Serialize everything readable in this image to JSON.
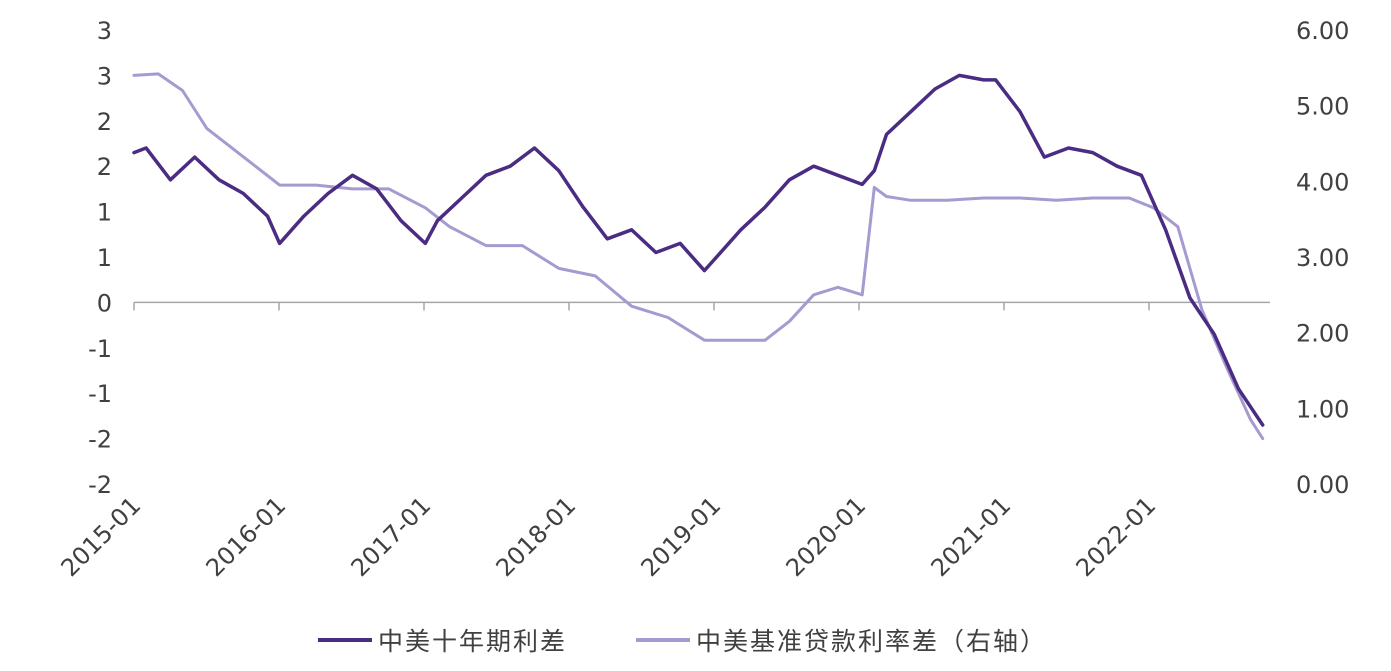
{
  "chart_data": {
    "type": "line",
    "left_axis": {
      "tick_labels": [
        "3",
        "3",
        "2",
        "2",
        "1",
        "1",
        "0",
        "-1",
        "-1",
        "-2",
        "-2"
      ],
      "ylim": [
        -2.0,
        3.0
      ]
    },
    "right_axis": {
      "tick_labels": [
        "6.00",
        "5.00",
        "4.00",
        "3.00",
        "2.00",
        "1.00",
        "0.00"
      ],
      "ylim": [
        0,
        6
      ]
    },
    "x_tick_labels": [
      "2015-01",
      "2016-01",
      "2017-01",
      "2018-01",
      "2019-01",
      "2020-01",
      "2021-01",
      "2022-01"
    ],
    "series": [
      {
        "name": "中美十年期利差",
        "axis": "left",
        "color": "#4a2c82",
        "x": [
          "2015-01",
          "2015-02",
          "2015-04",
          "2015-06",
          "2015-08",
          "2015-10",
          "2015-12",
          "2016-01",
          "2016-03",
          "2016-05",
          "2016-07",
          "2016-09",
          "2016-11",
          "2017-01",
          "2017-02",
          "2017-04",
          "2017-06",
          "2017-08",
          "2017-10",
          "2017-12",
          "2018-02",
          "2018-04",
          "2018-06",
          "2018-08",
          "2018-10",
          "2018-12",
          "2019-01",
          "2019-03",
          "2019-05",
          "2019-07",
          "2019-09",
          "2019-11",
          "2020-01",
          "2020-02",
          "2020-03",
          "2020-05",
          "2020-07",
          "2020-09",
          "2020-11",
          "2020-12",
          "2021-02",
          "2021-04",
          "2021-06",
          "2021-08",
          "2021-10",
          "2021-12",
          "2022-02",
          "2022-04",
          "2022-06",
          "2022-08",
          "2022-10"
        ],
        "values": [
          1.65,
          1.7,
          1.35,
          1.6,
          1.35,
          1.2,
          0.95,
          0.65,
          0.95,
          1.2,
          1.4,
          1.25,
          0.9,
          0.65,
          0.9,
          1.15,
          1.4,
          1.5,
          1.7,
          1.45,
          1.05,
          0.7,
          0.8,
          0.55,
          0.65,
          0.35,
          0.5,
          0.8,
          1.05,
          1.35,
          1.5,
          1.4,
          1.3,
          1.45,
          1.85,
          2.1,
          2.35,
          2.5,
          2.45,
          2.45,
          2.1,
          1.6,
          1.7,
          1.65,
          1.5,
          1.4,
          0.8,
          0.05,
          -0.35,
          -0.95,
          -1.35
        ]
      },
      {
        "name": "中美基准贷款利率差（右轴）",
        "axis": "right",
        "color": "#a59bd1",
        "x": [
          "2015-01",
          "2015-03",
          "2015-05",
          "2015-07",
          "2015-09",
          "2015-11",
          "2016-01",
          "2016-04",
          "2016-07",
          "2016-10",
          "2017-01",
          "2017-03",
          "2017-06",
          "2017-09",
          "2017-12",
          "2018-03",
          "2018-06",
          "2018-09",
          "2018-12",
          "2019-03",
          "2019-05",
          "2019-07",
          "2019-09",
          "2019-11",
          "2020-01",
          "2020-02",
          "2020-03",
          "2020-05",
          "2020-08",
          "2020-11",
          "2021-02",
          "2021-05",
          "2021-08",
          "2021-11",
          "2022-01",
          "2022-03",
          "2022-05",
          "2022-07",
          "2022-09",
          "2022-10"
        ],
        "values": [
          5.4,
          5.42,
          5.2,
          4.7,
          4.45,
          4.2,
          3.95,
          3.95,
          3.9,
          3.9,
          3.65,
          3.4,
          3.15,
          3.15,
          2.85,
          2.75,
          2.35,
          2.2,
          1.9,
          1.9,
          1.9,
          2.15,
          2.5,
          2.6,
          2.5,
          3.92,
          3.8,
          3.75,
          3.75,
          3.78,
          3.78,
          3.75,
          3.78,
          3.78,
          3.65,
          3.4,
          2.3,
          1.55,
          0.85,
          0.6
        ]
      }
    ]
  },
  "legend": {
    "items": [
      "中美十年期利差",
      "中美基准贷款利率差（右轴）"
    ]
  }
}
